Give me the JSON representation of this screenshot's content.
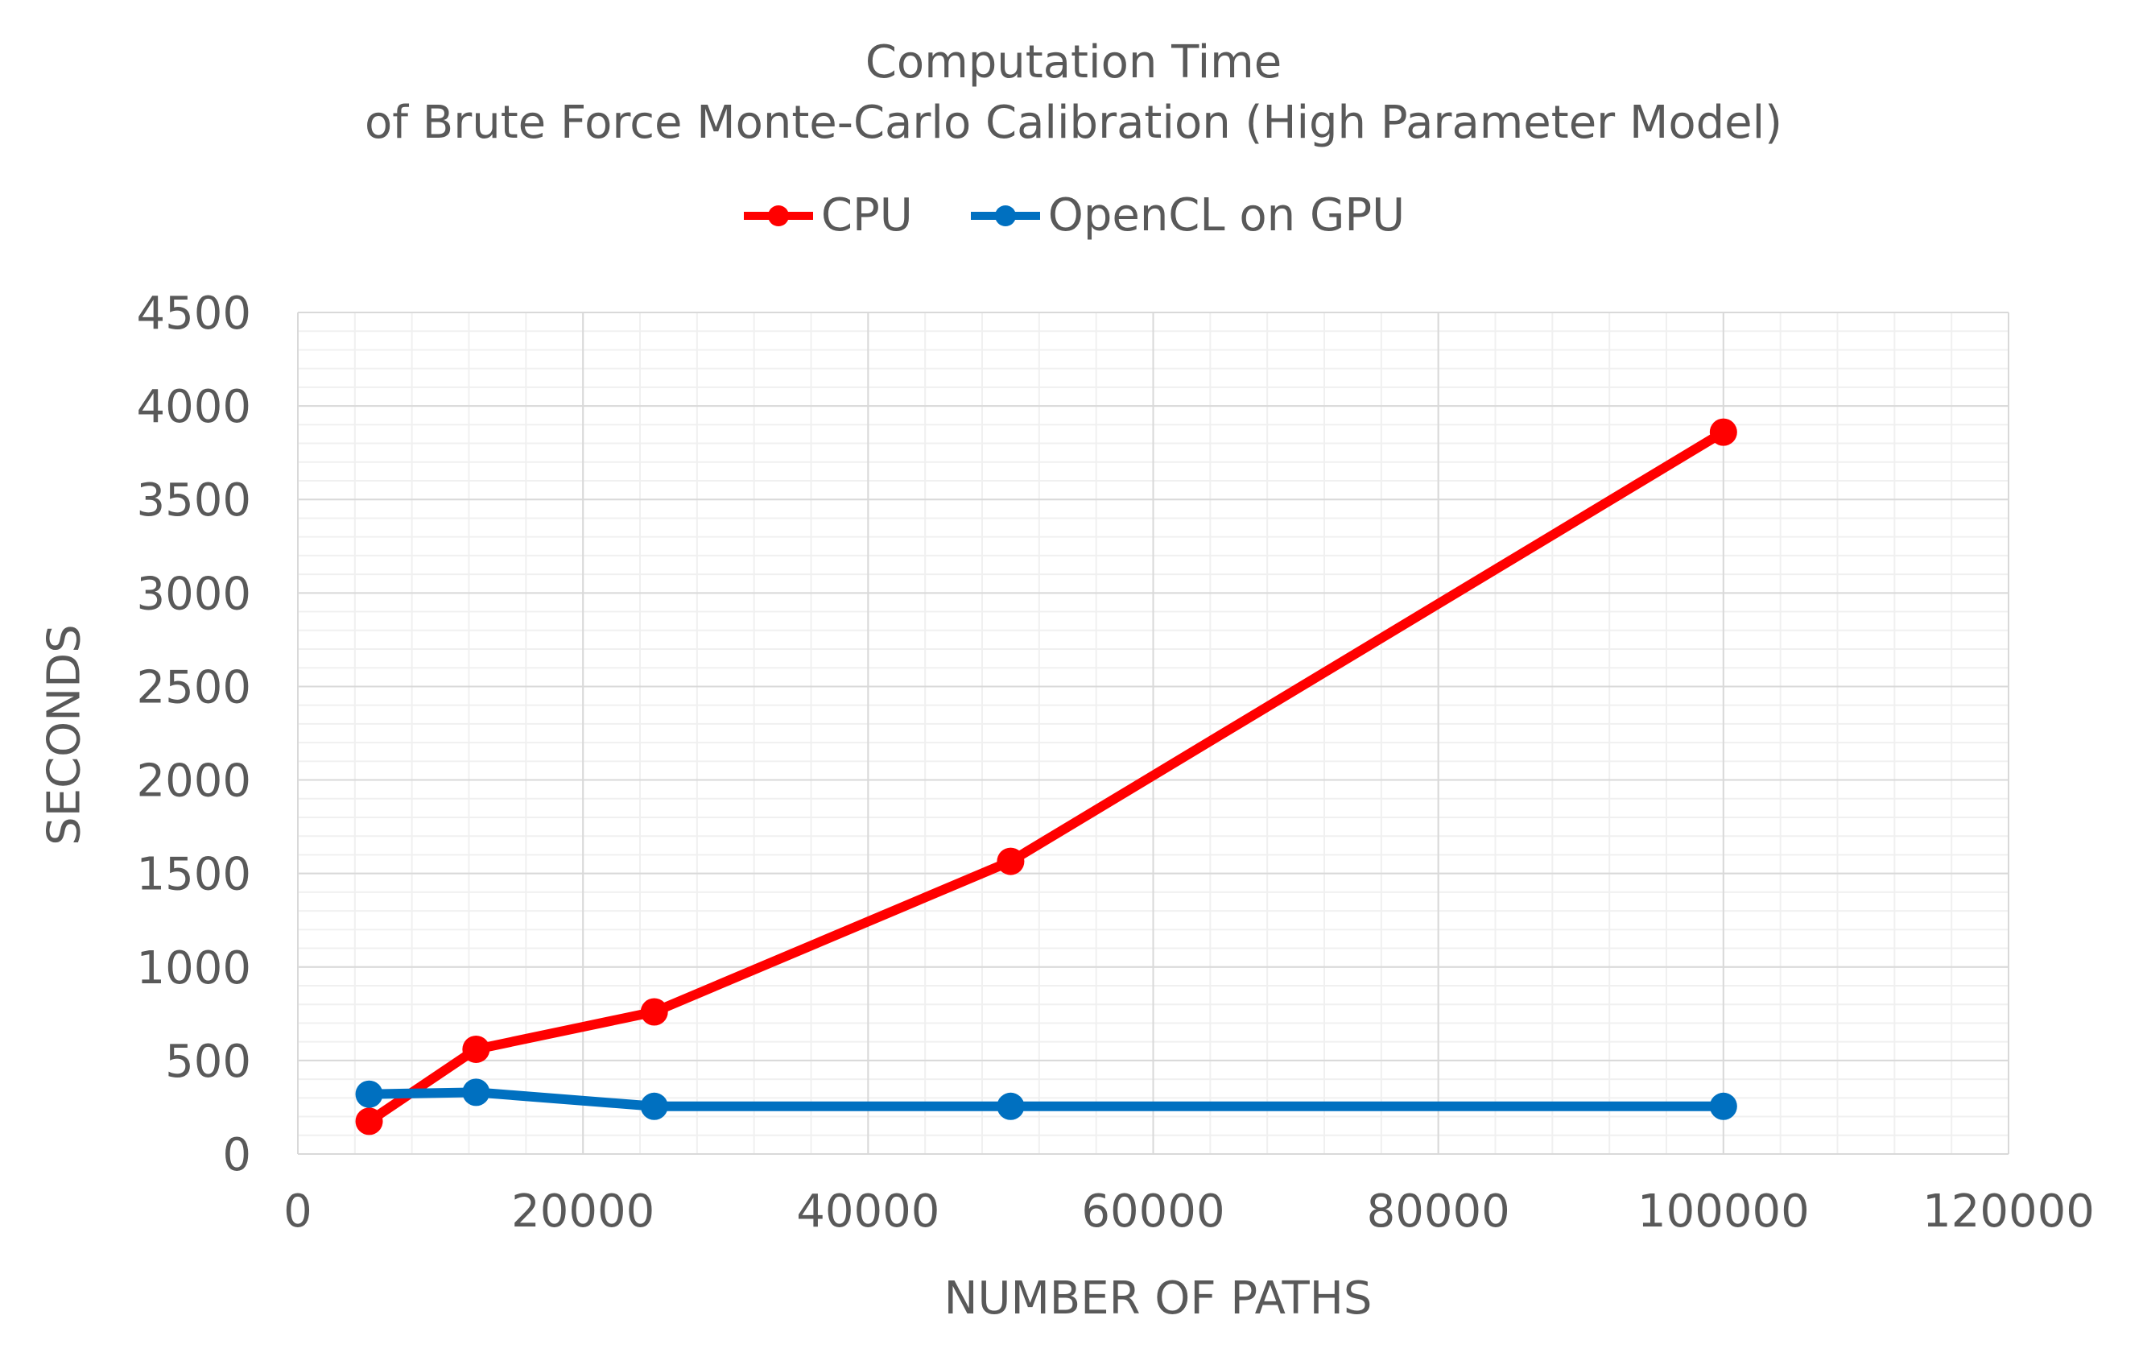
{
  "chart_data": {
    "type": "line",
    "title_lines": [
      "Computation Time",
      "of Brute Force Monte-Carlo Calibration (High Parameter Model)"
    ],
    "xlabel": "NUMBER OF PATHS",
    "ylabel": "SECONDS",
    "xlim": [
      0,
      120000
    ],
    "ylim": [
      0,
      4500
    ],
    "x_ticks": [
      0,
      20000,
      40000,
      60000,
      80000,
      100000,
      120000
    ],
    "y_ticks": [
      0,
      500,
      1000,
      1500,
      2000,
      2500,
      3000,
      3500,
      4000,
      4500
    ],
    "legend_position": "top",
    "grid": true,
    "series": [
      {
        "name": "CPU",
        "color": "#ff0000",
        "points": [
          [
            5000,
            175
          ],
          [
            12500,
            560
          ],
          [
            25000,
            760
          ],
          [
            50000,
            1565
          ],
          [
            100000,
            3860
          ]
        ]
      },
      {
        "name": "OpenCL on GPU",
        "color": "#0070c0",
        "points": [
          [
            5000,
            320
          ],
          [
            12500,
            330
          ],
          [
            25000,
            255
          ],
          [
            50000,
            255
          ],
          [
            100000,
            255
          ]
        ]
      }
    ]
  }
}
